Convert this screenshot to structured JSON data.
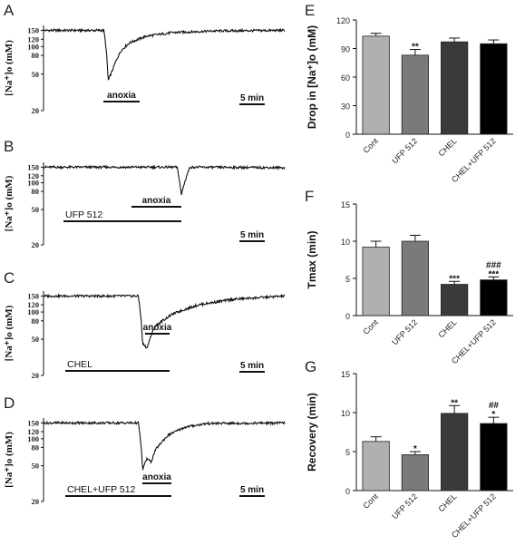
{
  "trace_panels": [
    {
      "label": "A",
      "ylabel": "[Na⁺]o (mM)",
      "yticks": [
        "150",
        "120",
        "100",
        "80",
        "50",
        "20"
      ],
      "stimulus_label": "anoxia",
      "drug_label": "",
      "scale_bar_label": "5 min"
    },
    {
      "label": "B",
      "ylabel": "[Na⁺]o (mM)",
      "yticks": [
        "150",
        "120",
        "100",
        "80",
        "50",
        "20"
      ],
      "stimulus_label": "anoxia",
      "drug_label": "UFP 512",
      "scale_bar_label": "5 min"
    },
    {
      "label": "C",
      "ylabel": "[Na⁺]o (mM)",
      "yticks": [
        "150",
        "120",
        "100",
        "80",
        "50",
        "20"
      ],
      "stimulus_label": "anoxia",
      "drug_label": "CHEL",
      "scale_bar_label": "5 min"
    },
    {
      "label": "D",
      "ylabel": "[Na⁺]o (mM)",
      "yticks": [
        "150",
        "120",
        "100",
        "80",
        "50",
        "20"
      ],
      "stimulus_label": "anoxia",
      "drug_label": "CHEL+UFP 512",
      "scale_bar_label": "5 min"
    }
  ],
  "chart_data": [
    {
      "panel": "A",
      "type": "line",
      "yscale": "log",
      "ylim": [
        20,
        170
      ],
      "baseline": 150,
      "nadir": 40,
      "points": [
        [
          0,
          150
        ],
        [
          14,
          150
        ],
        [
          15,
          42
        ],
        [
          16,
          55
        ],
        [
          18,
          90
        ],
        [
          20,
          110
        ],
        [
          24,
          130
        ],
        [
          30,
          142
        ],
        [
          40,
          148
        ],
        [
          56,
          150
        ]
      ]
    },
    {
      "panel": "B",
      "type": "line",
      "yscale": "log",
      "ylim": [
        20,
        170
      ],
      "baseline": 150,
      "nadir": 70,
      "points": [
        [
          0,
          150
        ],
        [
          31,
          150
        ],
        [
          32,
          72
        ],
        [
          33,
          110
        ],
        [
          34,
          150
        ],
        [
          56,
          148
        ]
      ]
    },
    {
      "panel": "C",
      "type": "line",
      "yscale": "log",
      "ylim": [
        20,
        170
      ],
      "baseline": 150,
      "nadir": 40,
      "points": [
        [
          0,
          150
        ],
        [
          22,
          150
        ],
        [
          23,
          45
        ],
        [
          24,
          40
        ],
        [
          26,
          70
        ],
        [
          30,
          95
        ],
        [
          36,
          120
        ],
        [
          44,
          138
        ],
        [
          56,
          150
        ]
      ]
    },
    {
      "panel": "D",
      "type": "line",
      "yscale": "log",
      "ylim": [
        20,
        170
      ],
      "baseline": 150,
      "nadir": 45,
      "points": [
        [
          0,
          150
        ],
        [
          22,
          150
        ],
        [
          23,
          45
        ],
        [
          24,
          60
        ],
        [
          25,
          55
        ],
        [
          26,
          75
        ],
        [
          29,
          110
        ],
        [
          33,
          135
        ],
        [
          38,
          148
        ],
        [
          56,
          150
        ]
      ]
    },
    {
      "panel": "E",
      "type": "bar",
      "ylabel": "Drop in [Na⁺]o (mM)",
      "ylim": [
        0,
        120
      ],
      "yticks": [
        "0",
        "30",
        "60",
        "90",
        "120"
      ],
      "categories": [
        "Cont",
        "UFP 512",
        "CHEL",
        "CHEL+UFP 512"
      ],
      "values": [
        103,
        83,
        97,
        95
      ],
      "errors": [
        3,
        6,
        4,
        4
      ],
      "colors": [
        "#b0b0b0",
        "#7a7a7a",
        "#3a3a3a",
        "#000000"
      ],
      "significance": [
        "",
        "**",
        "",
        ""
      ]
    },
    {
      "panel": "F",
      "type": "bar",
      "ylabel": "Tmax (min)",
      "ylim": [
        0,
        15
      ],
      "yticks": [
        "0",
        "5",
        "10",
        "15"
      ],
      "categories": [
        "Cont",
        "UFP 512",
        "CHEL",
        "CHEL+UFP 512"
      ],
      "values": [
        9.2,
        10.0,
        4.2,
        4.8
      ],
      "errors": [
        0.8,
        0.8,
        0.4,
        0.4
      ],
      "colors": [
        "#b0b0b0",
        "#7a7a7a",
        "#3a3a3a",
        "#000000"
      ],
      "significance": [
        "",
        "",
        "***",
        "***"
      ],
      "significance2": [
        "",
        "",
        "",
        "###"
      ]
    },
    {
      "panel": "G",
      "type": "bar",
      "ylabel": "Recovery (min)",
      "ylim": [
        0,
        15
      ],
      "yticks": [
        "0",
        "5",
        "10",
        "15"
      ],
      "categories": [
        "Cont",
        "UFP 512",
        "CHEL",
        "CHEL+UFP 512"
      ],
      "values": [
        6.3,
        4.6,
        9.9,
        8.6
      ],
      "errors": [
        0.6,
        0.4,
        1.0,
        0.8
      ],
      "colors": [
        "#b0b0b0",
        "#7a7a7a",
        "#3a3a3a",
        "#000000"
      ],
      "significance": [
        "",
        "*",
        "**",
        "*"
      ],
      "significance2": [
        "",
        "",
        "",
        "##"
      ]
    }
  ]
}
